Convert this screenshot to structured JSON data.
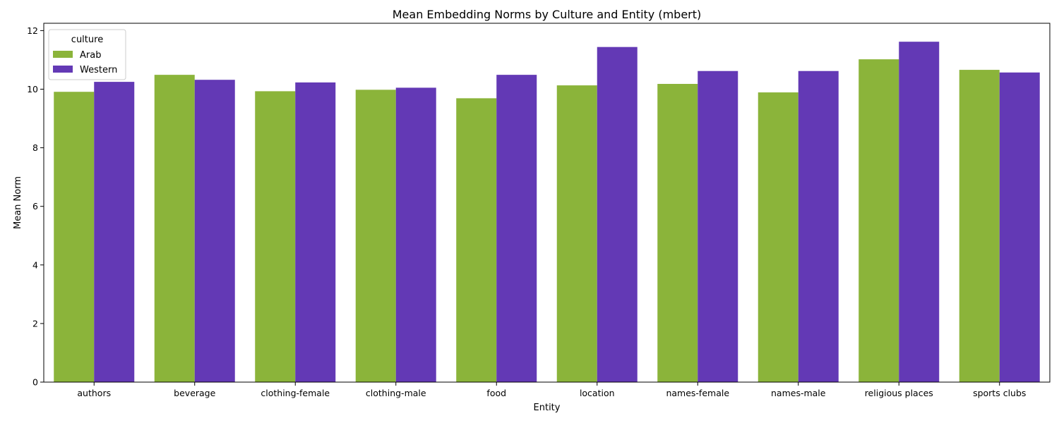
{
  "chart_data": {
    "type": "bar",
    "title": "Mean Embedding Norms by Culture and Entity (mbert)",
    "xlabel": "Entity",
    "ylabel": "Mean Norm",
    "categories": [
      "authors",
      "beverage",
      "clothing-female",
      "clothing-male",
      "food",
      "location",
      "names-female",
      "names-male",
      "religious places",
      "sports clubs"
    ],
    "series": [
      {
        "name": "Arab",
        "color": "#8bb43a",
        "values": [
          9.91,
          10.49,
          9.93,
          9.98,
          9.69,
          10.13,
          10.18,
          9.89,
          11.02,
          10.66
        ]
      },
      {
        "name": "Western",
        "color": "#6339b5",
        "values": [
          10.25,
          10.32,
          10.23,
          10.05,
          10.49,
          11.44,
          10.62,
          10.62,
          11.62,
          10.57
        ]
      }
    ],
    "ylim": [
      0,
      12.25
    ],
    "yticks": [
      0,
      2,
      4,
      6,
      8,
      10,
      12
    ],
    "grid": false,
    "legend": {
      "title": "culture",
      "placement": "top-left"
    }
  }
}
